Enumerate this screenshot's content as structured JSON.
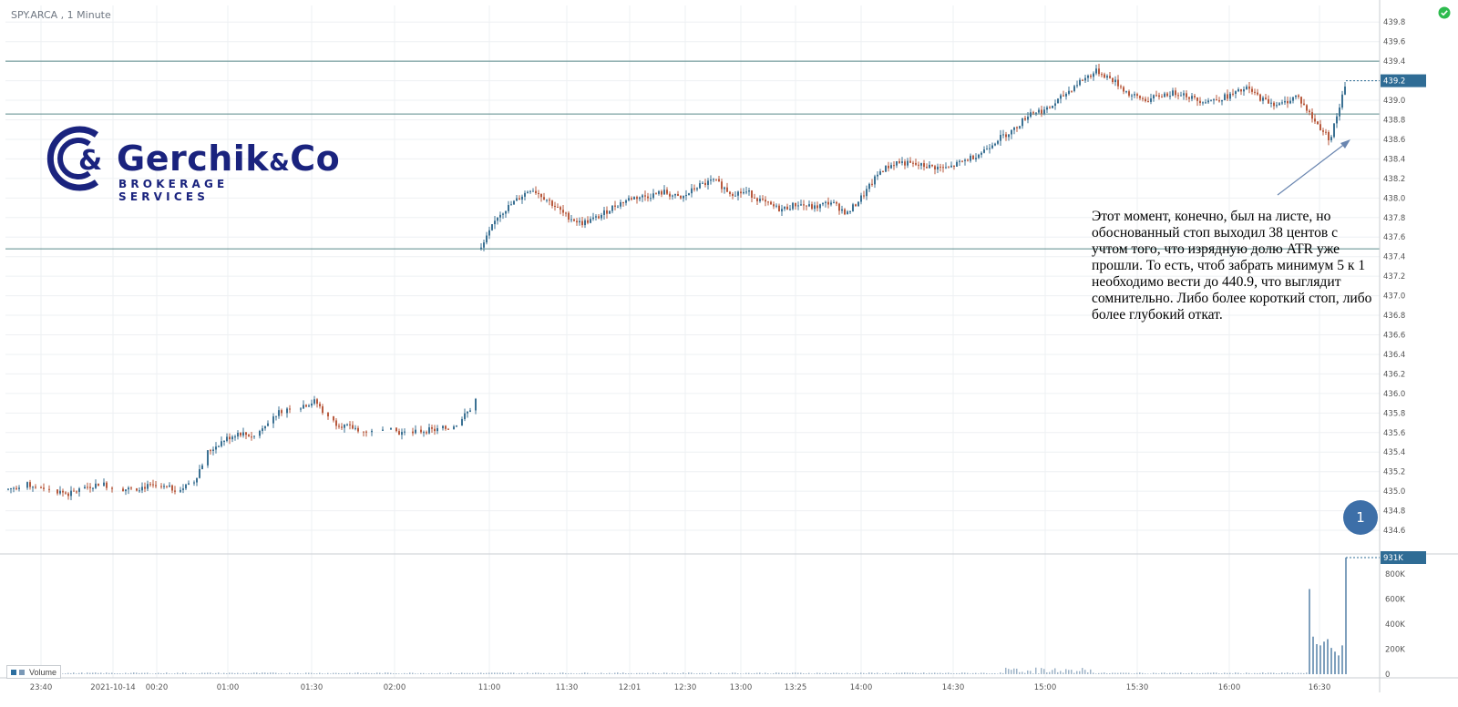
{
  "header": {
    "symbol": "SPY.ARCA , 1 Minute",
    "status_icon": "check-circle-icon",
    "status_color": "#2dbb4e"
  },
  "logo": {
    "name_main": "Gerchik",
    "name_amp": "&",
    "name_co": "Co",
    "tagline": "BROKERAGE SERVICES",
    "brand_color": "#1a237e"
  },
  "annotation": {
    "text": "Этот момент, конечно, был на листе, но обоснованный стоп выходил 38 центов с учтом того, что изрядную долю ATR уже прошли. То есть, чтоб забрать минимум 5 к 1 необходимо вести до 440.9, что выглядит сомнительно. Либо более короткий стоп, либо более глубокий откат.",
    "marker_label": "1"
  },
  "volume_legend": {
    "label": "Volume"
  },
  "colors": {
    "up": "#3b7193",
    "down": "#b85a3e",
    "level_line": "#5a8a8a",
    "axis_badge": "#2f6c95"
  },
  "chart_data": {
    "type": "candlestick",
    "title": "SPY.ARCA , 1 Minute",
    "price_axis": {
      "ticks": [
        "439.8",
        "439.6",
        "439.4",
        "439.2",
        "439.0",
        "438.8",
        "438.6",
        "438.4",
        "438.2",
        "438.0",
        "437.8",
        "437.6",
        "437.4",
        "437.2",
        "437.0",
        "436.8",
        "436.6",
        "436.4",
        "436.2",
        "436.0",
        "435.8",
        "435.6",
        "435.4",
        "435.2",
        "435.0",
        "434.8",
        "434.6"
      ],
      "range": [
        434.47,
        439.97
      ],
      "last_price": "439.2"
    },
    "time_axis": {
      "labels": [
        "23:40",
        "2021-10-14",
        "00:20",
        "01:00",
        "01:30",
        "02:00",
        "11:00",
        "11:30",
        "12:01",
        "12:30",
        "13:00",
        "13:25",
        "14:00",
        "14:30",
        "15:00",
        "15:30",
        "16:00",
        "16:30"
      ]
    },
    "horizontal_levels": [
      439.4,
      438.86,
      437.48
    ],
    "price_segments": [
      {
        "name": "premarket",
        "points": [
          [
            0,
            435.02
          ],
          [
            10,
            435.07
          ],
          [
            20,
            435.05
          ],
          [
            30,
            435.01
          ],
          [
            40,
            434.97
          ],
          [
            50,
            435.04
          ],
          [
            60,
            435.08
          ],
          [
            70,
            435.03
          ],
          [
            80,
            435.02
          ],
          [
            90,
            435.05
          ],
          [
            100,
            435.04
          ],
          [
            110,
            435.02
          ],
          [
            120,
            435.07
          ],
          [
            130,
            435.4
          ],
          [
            140,
            435.52
          ],
          [
            150,
            435.6
          ],
          [
            160,
            435.56
          ],
          [
            170,
            435.74
          ],
          [
            180,
            435.85
          ],
          [
            190,
            435.87
          ],
          [
            200,
            435.92
          ],
          [
            210,
            435.72
          ],
          [
            220,
            435.66
          ],
          [
            230,
            435.63
          ],
          [
            240,
            435.6
          ],
          [
            250,
            435.62
          ],
          [
            260,
            435.58
          ],
          [
            270,
            435.62
          ],
          [
            280,
            435.63
          ],
          [
            290,
            435.66
          ],
          [
            300,
            435.82
          ],
          [
            305,
            435.95
          ]
        ]
      },
      {
        "name": "regular",
        "points": [
          [
            0,
            437.48
          ],
          [
            10,
            437.82
          ],
          [
            20,
            437.96
          ],
          [
            30,
            438.1
          ],
          [
            40,
            437.98
          ],
          [
            50,
            437.83
          ],
          [
            60,
            437.74
          ],
          [
            70,
            437.8
          ],
          [
            80,
            437.92
          ],
          [
            90,
            438.0
          ],
          [
            100,
            438.02
          ],
          [
            110,
            438.06
          ],
          [
            120,
            437.99
          ],
          [
            130,
            438.12
          ],
          [
            140,
            438.18
          ],
          [
            150,
            438.05
          ],
          [
            160,
            438.06
          ],
          [
            170,
            437.95
          ],
          [
            180,
            437.88
          ],
          [
            190,
            437.94
          ],
          [
            200,
            437.9
          ],
          [
            210,
            437.96
          ],
          [
            220,
            437.84
          ],
          [
            230,
            438.04
          ],
          [
            240,
            438.28
          ],
          [
            250,
            438.37
          ],
          [
            260,
            438.34
          ],
          [
            270,
            438.32
          ],
          [
            280,
            438.3
          ],
          [
            290,
            438.38
          ],
          [
            300,
            438.46
          ],
          [
            310,
            438.6
          ],
          [
            320,
            438.7
          ],
          [
            330,
            438.88
          ],
          [
            340,
            438.9
          ],
          [
            350,
            439.05
          ],
          [
            360,
            439.2
          ],
          [
            370,
            439.3
          ],
          [
            380,
            439.2
          ],
          [
            390,
            439.05
          ],
          [
            400,
            439.0
          ],
          [
            410,
            439.06
          ],
          [
            420,
            439.08
          ],
          [
            430,
            439.0
          ],
          [
            440,
            439.0
          ],
          [
            450,
            439.05
          ],
          [
            460,
            439.12
          ],
          [
            470,
            439.0
          ],
          [
            480,
            438.95
          ],
          [
            490,
            439.05
          ],
          [
            500,
            438.8
          ],
          [
            510,
            438.6
          ],
          [
            520,
            439.2
          ]
        ]
      }
    ],
    "volume": {
      "series_name": "Volume",
      "axis_ticks": [
        "931K",
        "800K",
        "600K",
        "400K",
        "200K",
        "0"
      ],
      "last_value": "931K",
      "spike_values_k": [
        680,
        300,
        240,
        230,
        260,
        280,
        210,
        180,
        150,
        230,
        931
      ]
    }
  }
}
